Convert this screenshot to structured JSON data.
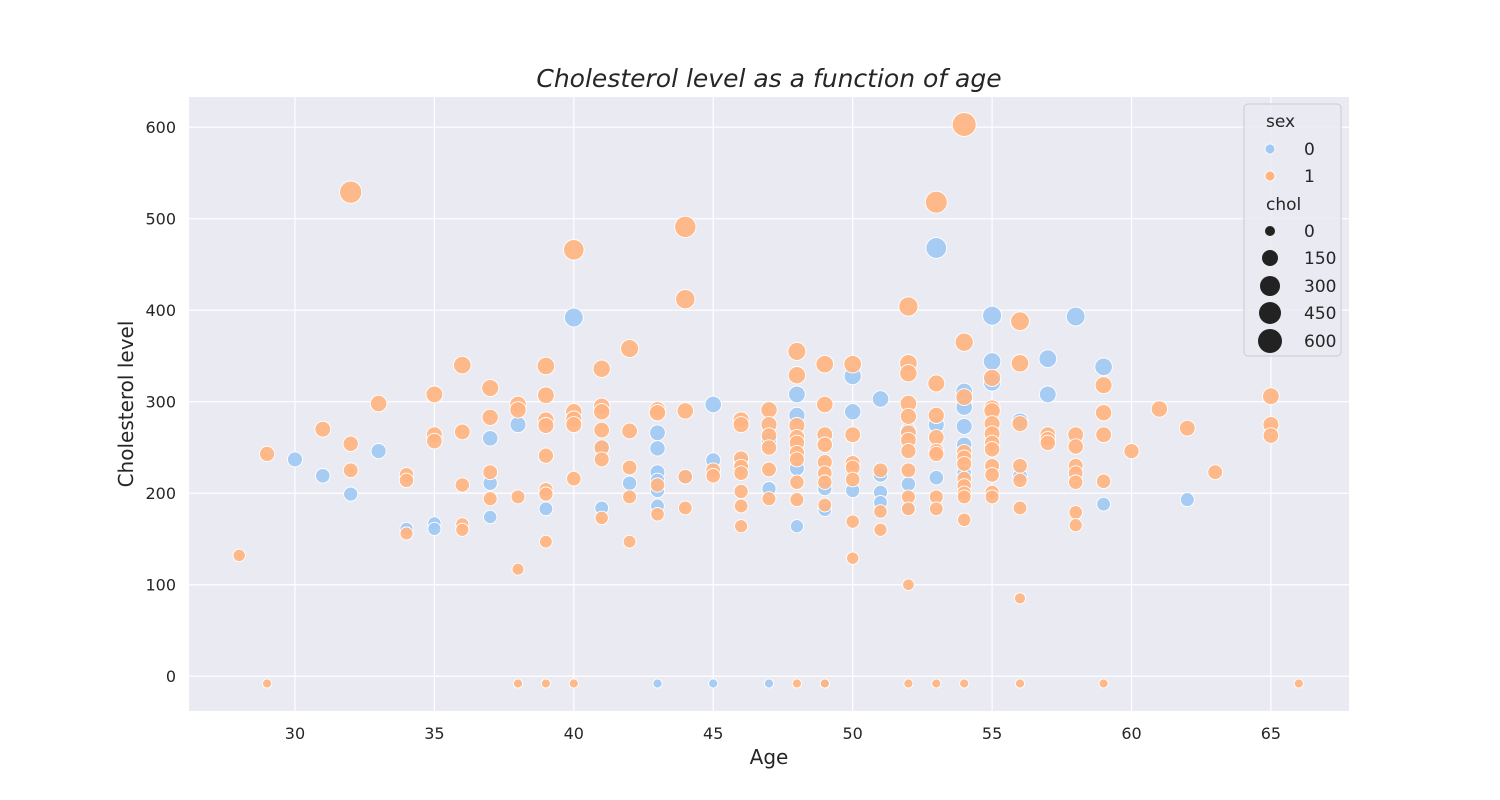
{
  "chart_data": {
    "type": "scatter",
    "title": "Cholesterol level as a function of age",
    "xlabel": "Age",
    "ylabel": "Cholesterol level",
    "xlim": [
      26.2,
      67.8
    ],
    "ylim": [
      -38,
      633
    ],
    "xticks": [
      30,
      35,
      40,
      45,
      50,
      55,
      60,
      65
    ],
    "yticks": [
      0,
      100,
      200,
      300,
      400,
      500,
      600
    ],
    "grid": true,
    "legend_position": "top-right",
    "colors": {
      "0": "#a1c9f4",
      "1": "#ffb482",
      "background": "#eaeaf2",
      "grid": "#ffffff"
    },
    "legend": {
      "hue_title": "sex",
      "hue_entries": [
        "0",
        "1"
      ],
      "size_title": "chol",
      "size_entries": [
        "0",
        "150",
        "300",
        "450",
        "600"
      ]
    },
    "series": [
      {
        "name": "0",
        "points": [
          [
            30,
            237
          ],
          [
            31,
            219
          ],
          [
            32,
            199
          ],
          [
            33,
            246
          ],
          [
            34,
            161
          ],
          [
            35,
            167
          ],
          [
            35,
            161
          ],
          [
            37,
            211
          ],
          [
            37,
            260
          ],
          [
            37,
            174
          ],
          [
            38,
            275
          ],
          [
            39,
            183
          ],
          [
            40,
            392
          ],
          [
            41,
            184
          ],
          [
            41,
            250
          ],
          [
            42,
            211
          ],
          [
            43,
            266
          ],
          [
            43,
            249
          ],
          [
            43,
            223
          ],
          [
            43,
            214
          ],
          [
            43,
            186
          ],
          [
            43,
            203
          ],
          [
            43,
            -8
          ],
          [
            44,
            218
          ],
          [
            45,
            297
          ],
          [
            45,
            236
          ],
          [
            45,
            -8
          ],
          [
            46,
            234
          ],
          [
            47,
            258
          ],
          [
            47,
            205
          ],
          [
            47,
            -8
          ],
          [
            48,
            308
          ],
          [
            48,
            285
          ],
          [
            48,
            227
          ],
          [
            48,
            164
          ],
          [
            49,
            205
          ],
          [
            49,
            182
          ],
          [
            49,
            -8
          ],
          [
            50,
            328
          ],
          [
            50,
            289
          ],
          [
            50,
            203
          ],
          [
            51,
            303
          ],
          [
            51,
            201
          ],
          [
            51,
            190
          ],
          [
            51,
            220
          ],
          [
            52,
            268
          ],
          [
            52,
            210
          ],
          [
            52,
            183
          ],
          [
            53,
            468
          ],
          [
            53,
            275
          ],
          [
            53,
            217
          ],
          [
            54,
            311
          ],
          [
            54,
            302
          ],
          [
            54,
            294
          ],
          [
            54,
            273
          ],
          [
            54,
            253
          ],
          [
            54,
            222
          ],
          [
            55,
            394
          ],
          [
            55,
            344
          ],
          [
            55,
            321
          ],
          [
            56,
            279
          ],
          [
            56,
            219
          ],
          [
            57,
            347
          ],
          [
            57,
            308
          ],
          [
            58,
            393
          ],
          [
            59,
            338
          ],
          [
            59,
            188
          ],
          [
            62,
            193
          ]
        ]
      },
      {
        "name": "1",
        "points": [
          [
            28,
            132
          ],
          [
            29,
            243
          ],
          [
            29,
            -8
          ],
          [
            31,
            270
          ],
          [
            32,
            529
          ],
          [
            32,
            254
          ],
          [
            32,
            225
          ],
          [
            33,
            298
          ],
          [
            34,
            220
          ],
          [
            34,
            214
          ],
          [
            34,
            156
          ],
          [
            35,
            308
          ],
          [
            35,
            264
          ],
          [
            35,
            257
          ],
          [
            36,
            340
          ],
          [
            36,
            267
          ],
          [
            36,
            209
          ],
          [
            36,
            166
          ],
          [
            36,
            160
          ],
          [
            37,
            315
          ],
          [
            37,
            283
          ],
          [
            37,
            223
          ],
          [
            37,
            194
          ],
          [
            38,
            297
          ],
          [
            38,
            291
          ],
          [
            38,
            196
          ],
          [
            38,
            117
          ],
          [
            38,
            -8
          ],
          [
            39,
            339
          ],
          [
            39,
            307
          ],
          [
            39,
            280
          ],
          [
            39,
            274
          ],
          [
            39,
            241
          ],
          [
            39,
            204
          ],
          [
            39,
            199
          ],
          [
            39,
            147
          ],
          [
            39,
            -8
          ],
          [
            40,
            466
          ],
          [
            40,
            289
          ],
          [
            40,
            281
          ],
          [
            40,
            275
          ],
          [
            40,
            216
          ],
          [
            40,
            -8
          ],
          [
            41,
            336
          ],
          [
            41,
            295
          ],
          [
            41,
            289
          ],
          [
            41,
            269
          ],
          [
            41,
            250
          ],
          [
            41,
            237
          ],
          [
            41,
            173
          ],
          [
            42,
            358
          ],
          [
            42,
            268
          ],
          [
            42,
            228
          ],
          [
            42,
            196
          ],
          [
            42,
            147
          ],
          [
            43,
            291
          ],
          [
            43,
            288
          ],
          [
            43,
            209
          ],
          [
            43,
            177
          ],
          [
            44,
            491
          ],
          [
            44,
            412
          ],
          [
            44,
            290
          ],
          [
            44,
            218
          ],
          [
            44,
            184
          ],
          [
            45,
            225
          ],
          [
            45,
            219
          ],
          [
            46,
            280
          ],
          [
            46,
            275
          ],
          [
            46,
            238
          ],
          [
            46,
            229
          ],
          [
            46,
            222
          ],
          [
            46,
            202
          ],
          [
            46,
            186
          ],
          [
            46,
            164
          ],
          [
            47,
            291
          ],
          [
            47,
            275
          ],
          [
            47,
            263
          ],
          [
            47,
            250
          ],
          [
            47,
            226
          ],
          [
            47,
            194
          ],
          [
            48,
            355
          ],
          [
            48,
            329
          ],
          [
            48,
            274
          ],
          [
            48,
            261
          ],
          [
            48,
            255
          ],
          [
            48,
            244
          ],
          [
            48,
            237
          ],
          [
            48,
            212
          ],
          [
            48,
            193
          ],
          [
            48,
            -8
          ],
          [
            49,
            341
          ],
          [
            49,
            297
          ],
          [
            49,
            264
          ],
          [
            49,
            253
          ],
          [
            49,
            234
          ],
          [
            49,
            222
          ],
          [
            49,
            212
          ],
          [
            49,
            187
          ],
          [
            49,
            -8
          ],
          [
            50,
            341
          ],
          [
            50,
            264
          ],
          [
            50,
            233
          ],
          [
            50,
            228
          ],
          [
            50,
            215
          ],
          [
            50,
            169
          ],
          [
            50,
            129
          ],
          [
            51,
            225
          ],
          [
            51,
            180
          ],
          [
            51,
            160
          ],
          [
            52,
            404
          ],
          [
            52,
            342
          ],
          [
            52,
            331
          ],
          [
            52,
            298
          ],
          [
            52,
            284
          ],
          [
            52,
            266
          ],
          [
            52,
            258
          ],
          [
            52,
            246
          ],
          [
            52,
            225
          ],
          [
            52,
            196
          ],
          [
            52,
            183
          ],
          [
            52,
            100
          ],
          [
            52,
            -8
          ],
          [
            53,
            518
          ],
          [
            53,
            320
          ],
          [
            53,
            285
          ],
          [
            53,
            261
          ],
          [
            53,
            246
          ],
          [
            53,
            243
          ],
          [
            53,
            196
          ],
          [
            53,
            183
          ],
          [
            53,
            -8
          ],
          [
            54,
            603
          ],
          [
            54,
            365
          ],
          [
            54,
            305
          ],
          [
            54,
            245
          ],
          [
            54,
            239
          ],
          [
            54,
            232
          ],
          [
            54,
            216
          ],
          [
            54,
            208
          ],
          [
            54,
            200
          ],
          [
            54,
            196
          ],
          [
            54,
            171
          ],
          [
            54,
            -8
          ],
          [
            55,
            326
          ],
          [
            55,
            293
          ],
          [
            55,
            290
          ],
          [
            55,
            276
          ],
          [
            55,
            265
          ],
          [
            55,
            255
          ],
          [
            55,
            248
          ],
          [
            55,
            230
          ],
          [
            55,
            220
          ],
          [
            55,
            201
          ],
          [
            55,
            196
          ],
          [
            56,
            388
          ],
          [
            56,
            342
          ],
          [
            56,
            276
          ],
          [
            56,
            230
          ],
          [
            56,
            214
          ],
          [
            56,
            184
          ],
          [
            56,
            85
          ],
          [
            56,
            -8
          ],
          [
            57,
            264
          ],
          [
            57,
            259
          ],
          [
            57,
            255
          ],
          [
            58,
            264
          ],
          [
            58,
            251
          ],
          [
            58,
            230
          ],
          [
            58,
            222
          ],
          [
            58,
            212
          ],
          [
            58,
            179
          ],
          [
            58,
            165
          ],
          [
            59,
            318
          ],
          [
            59,
            288
          ],
          [
            59,
            264
          ],
          [
            59,
            213
          ],
          [
            59,
            -8
          ],
          [
            60,
            246
          ],
          [
            61,
            292
          ],
          [
            62,
            271
          ],
          [
            63,
            223
          ],
          [
            65,
            306
          ],
          [
            65,
            275
          ],
          [
            65,
            263
          ],
          [
            66,
            -8
          ]
        ]
      }
    ]
  }
}
